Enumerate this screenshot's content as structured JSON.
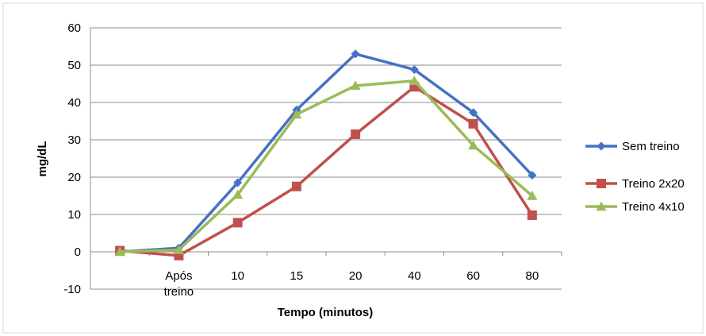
{
  "chart_data": {
    "type": "line",
    "categories": [
      "",
      "Após treino",
      "10",
      "15",
      "20",
      "40",
      "60",
      "80"
    ],
    "xlabel": "Tempo (minutos)",
    "ylabel": "mg/dL",
    "ylim": [
      -10,
      60
    ],
    "yticks": [
      -10,
      0,
      10,
      20,
      30,
      40,
      50,
      60
    ],
    "grid": true,
    "legend_position": "right",
    "series": [
      {
        "name": "Sem treino",
        "color": "#4472C4",
        "marker": "diamond",
        "values": [
          0,
          1,
          18.5,
          38,
          53,
          48.8,
          37.3,
          20.5
        ]
      },
      {
        "name": "Treino 2x20",
        "color": "#C0504D",
        "marker": "square",
        "values": [
          0.3,
          -1,
          7.8,
          17.5,
          31.5,
          44.2,
          34.3,
          9.8
        ]
      },
      {
        "name": "Treino 4x10",
        "color": "#9BBB59",
        "marker": "triangle",
        "values": [
          0,
          0.5,
          15.3,
          36.8,
          44.5,
          45.8,
          28.5,
          15
        ]
      }
    ]
  }
}
